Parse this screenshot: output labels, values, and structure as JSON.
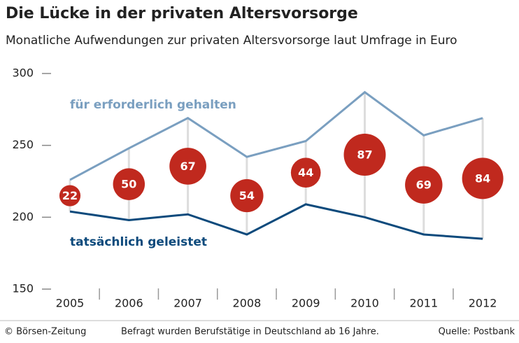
{
  "chart_data": {
    "type": "line",
    "title": "Die Lücke in der privaten Altersvorsorge",
    "subtitle": "Monatliche Aufwendungen zur privaten Altersvorsorge laut Umfrage in Euro",
    "categories": [
      "2005",
      "2006",
      "2007",
      "2008",
      "2009",
      "2010",
      "2011",
      "2012"
    ],
    "series": [
      {
        "name": "für erforderlich gehalten",
        "color": "#7a9fc0",
        "values": [
          226,
          248,
          269,
          242,
          253,
          287,
          257,
          269
        ]
      },
      {
        "name": "tatsächlich geleistet",
        "color": "#0d4a7c",
        "values": [
          204,
          198,
          202,
          188,
          209,
          200,
          188,
          185
        ]
      }
    ],
    "gap": {
      "color": "#c0291e",
      "values": [
        22,
        50,
        67,
        54,
        44,
        87,
        69,
        84
      ]
    },
    "ylim": [
      150,
      300
    ],
    "yticks": [
      150,
      200,
      250,
      300
    ],
    "footer": {
      "left": "© Börsen-Zeitung",
      "center": "Befragt wurden Berufstätige in Deutschland ab 16 Jahre.",
      "right": "Quelle: Postbank"
    }
  }
}
